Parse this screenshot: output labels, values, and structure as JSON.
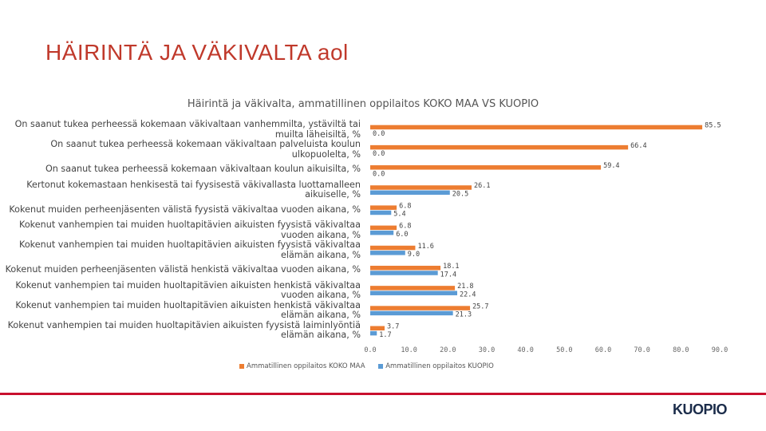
{
  "slide": {
    "title": "HÄIRINTÄ JA VÄKIVALTA aol",
    "logo": "KUOPIO"
  },
  "colors": {
    "title": "#c0392b",
    "series1": "#ed7d31",
    "series2": "#5b9bd5",
    "footer": "#c8102e"
  },
  "chart_data": {
    "type": "bar",
    "orientation": "horizontal",
    "title": "Häirintä ja väkivalta, ammatillinen oppilaitos KOKO MAA VS KUOPIO",
    "categories": [
      "On saanut tukea perheessä kokemaan väkivaltaan vanhemmilta, ystäviltä tai muilta läheisiltä, %",
      "On saanut tukea perheessä kokemaan väkivaltaan palveluista koulun ulkopuolelta, %",
      "On saanut tukea perheessä kokemaan väkivaltaan koulun aikuisilta, %",
      "Kertonut kokemastaan henkisestä tai fyysisestä väkivallasta luottamalleen aikuiselle, %",
      "Kokenut muiden perheenjäsenten välistä fyysistä väkivaltaa vuoden aikana, %",
      "Kokenut vanhempien tai muiden huoltapitävien aikuisten fyysistä väkivaltaa vuoden aikana, %",
      "Kokenut vanhempien tai muiden huoltapitävien aikuisten fyysistä väkivaltaa elämän aikana, %",
      "Kokenut muiden perheenjäsenten välistä henkistä väkivaltaa vuoden aikana, %",
      "Kokenut vanhempien tai muiden huoltapitävien aikuisten henkistä väkivaltaa vuoden aikana, %",
      "Kokenut vanhempien tai muiden huoltapitävien aikuisten henkistä väkivaltaa elämän aikana, %",
      "Kokenut vanhempien tai muiden huoltapitävien aikuisten fyysistä laiminlyöntiä elämän aikana, %"
    ],
    "series": [
      {
        "name": "Ammatillinen oppilaitos KOKO MAA",
        "values": [
          85.5,
          66.4,
          59.4,
          26.1,
          6.8,
          6.8,
          11.6,
          18.1,
          21.8,
          25.7,
          3.7
        ]
      },
      {
        "name": "Ammatillinen oppilaitos KUOPIO",
        "values": [
          0.0,
          0.0,
          0.0,
          20.5,
          5.4,
          6.0,
          9.0,
          17.4,
          22.4,
          21.3,
          1.7
        ]
      }
    ],
    "xlim": [
      0,
      90
    ],
    "xticks": [
      "0.0",
      "10.0",
      "20.0",
      "30.0",
      "40.0",
      "50.0",
      "60.0",
      "70.0",
      "80.0",
      "90.0"
    ],
    "legend": "bottom"
  }
}
